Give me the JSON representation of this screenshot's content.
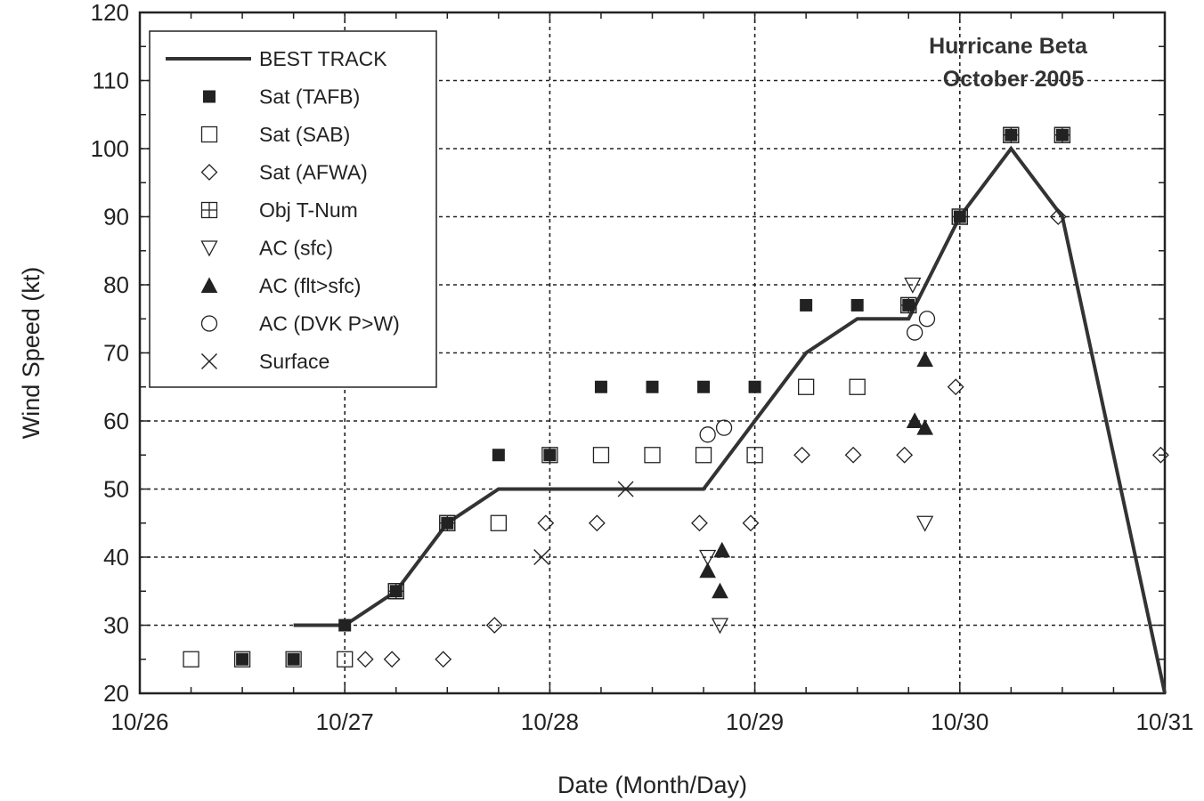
{
  "chart_data": {
    "type": "scatter",
    "title": "Hurricane Beta",
    "subtitle": "October 2005",
    "xlabel": "Date (Month/Day)",
    "ylabel": "Wind Speed (kt)",
    "x_range_days": [
      0,
      5
    ],
    "ylim": [
      20,
      120
    ],
    "x_tick_labels": [
      "10/26",
      "10/27",
      "10/28",
      "10/29",
      "10/30",
      "10/31"
    ],
    "y_ticks": [
      20,
      30,
      40,
      50,
      60,
      70,
      80,
      90,
      100,
      110,
      120
    ],
    "grid": true,
    "legend_position": "top-left",
    "series": [
      {
        "name": "BEST TRACK",
        "marker": "line",
        "points": [
          [
            0.75,
            30
          ],
          [
            1.0,
            30
          ],
          [
            1.25,
            35
          ],
          [
            1.5,
            45
          ],
          [
            1.75,
            50
          ],
          [
            2.0,
            50
          ],
          [
            2.25,
            50
          ],
          [
            2.5,
            50
          ],
          [
            2.75,
            50
          ],
          [
            3.0,
            60
          ],
          [
            3.25,
            70
          ],
          [
            3.5,
            75
          ],
          [
            3.75,
            75
          ],
          [
            4.0,
            90
          ],
          [
            4.25,
            100
          ],
          [
            4.5,
            90
          ],
          [
            5.0,
            20
          ]
        ]
      },
      {
        "name": "Sat (TAFB)",
        "marker": "filled-square",
        "points": [
          [
            0.5,
            25
          ],
          [
            0.75,
            25
          ],
          [
            1.0,
            30
          ],
          [
            1.25,
            35
          ],
          [
            1.5,
            45
          ],
          [
            1.75,
            55
          ],
          [
            2.0,
            55
          ],
          [
            2.25,
            65
          ],
          [
            2.5,
            65
          ],
          [
            2.75,
            65
          ],
          [
            3.0,
            65
          ],
          [
            3.25,
            77
          ],
          [
            3.5,
            77
          ],
          [
            3.75,
            77
          ],
          [
            4.0,
            90
          ],
          [
            4.25,
            102
          ],
          [
            4.5,
            102
          ]
        ]
      },
      {
        "name": "Sat (SAB)",
        "marker": "open-square",
        "points": [
          [
            0.25,
            25
          ],
          [
            0.5,
            25
          ],
          [
            0.75,
            25
          ],
          [
            1.0,
            25
          ],
          [
            1.25,
            35
          ],
          [
            1.5,
            45
          ],
          [
            1.75,
            45
          ],
          [
            2.0,
            55
          ],
          [
            2.25,
            55
          ],
          [
            2.5,
            55
          ],
          [
            2.75,
            55
          ],
          [
            3.0,
            55
          ],
          [
            3.25,
            65
          ],
          [
            3.5,
            65
          ],
          [
            3.75,
            77
          ],
          [
            4.0,
            90
          ],
          [
            4.25,
            102
          ],
          [
            4.5,
            102
          ]
        ]
      },
      {
        "name": "Sat (AFWA)",
        "marker": "open-diamond",
        "points": [
          [
            1.1,
            25
          ],
          [
            1.23,
            25
          ],
          [
            1.48,
            25
          ],
          [
            1.73,
            30
          ],
          [
            1.98,
            45
          ],
          [
            2.23,
            45
          ],
          [
            2.73,
            45
          ],
          [
            2.98,
            45
          ],
          [
            3.23,
            55
          ],
          [
            3.48,
            55
          ],
          [
            3.73,
            55
          ],
          [
            3.98,
            65
          ],
          [
            4.48,
            90
          ],
          [
            4.98,
            55
          ]
        ]
      },
      {
        "name": "Obj T-Num",
        "marker": "crossed-square",
        "points": [
          [
            1.25,
            35
          ],
          [
            1.5,
            45
          ],
          [
            3.75,
            77
          ],
          [
            4.0,
            90
          ],
          [
            4.25,
            102
          ],
          [
            4.5,
            102
          ]
        ]
      },
      {
        "name": "AC (sfc)",
        "marker": "open-triangle-down",
        "points": [
          [
            2.77,
            40
          ],
          [
            2.83,
            30
          ],
          [
            3.77,
            80
          ],
          [
            3.83,
            45
          ]
        ]
      },
      {
        "name": "AC (flt>sfc)",
        "marker": "filled-triangle-up",
        "points": [
          [
            2.77,
            38
          ],
          [
            2.83,
            35
          ],
          [
            2.84,
            41
          ],
          [
            3.78,
            60
          ],
          [
            3.83,
            59
          ],
          [
            3.83,
            69
          ]
        ]
      },
      {
        "name": "AC (DVK P>W)",
        "marker": "open-circle",
        "points": [
          [
            2.77,
            58
          ],
          [
            2.85,
            59
          ],
          [
            3.78,
            73
          ],
          [
            3.84,
            75
          ]
        ]
      },
      {
        "name": "Surface",
        "marker": "x-cross",
        "points": [
          [
            1.96,
            40
          ],
          [
            2.37,
            50
          ]
        ]
      }
    ]
  }
}
